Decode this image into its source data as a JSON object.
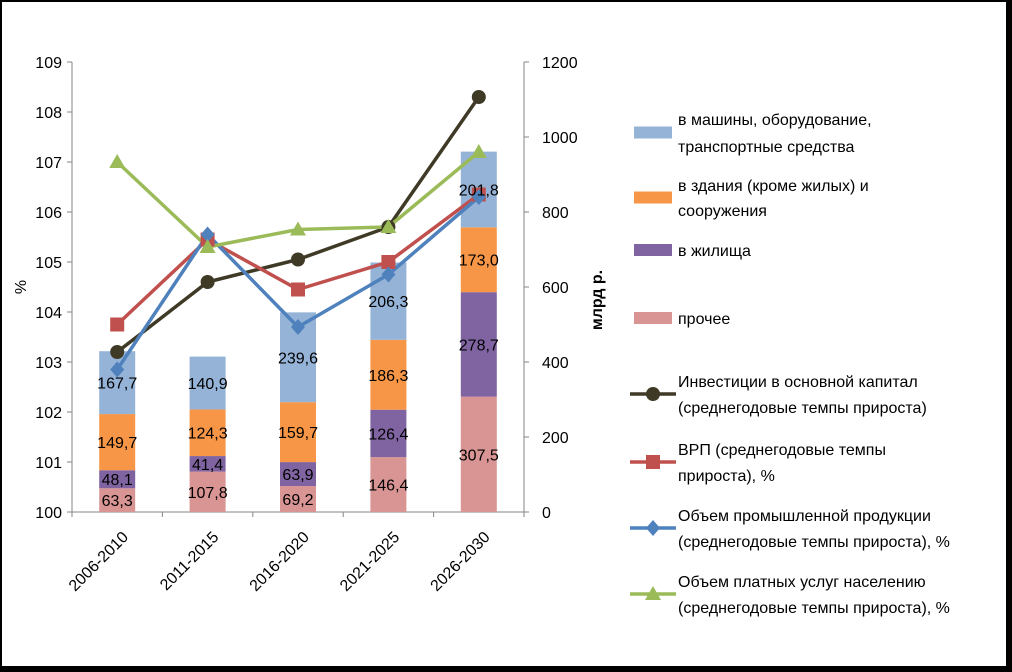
{
  "chart_data": {
    "type": "bar",
    "stacked": true,
    "combo": true,
    "categories": [
      "2006-2010",
      "2011-2015",
      "2016-2020",
      "2021-2025",
      "2026-2030"
    ],
    "y_left": {
      "label": "%",
      "ylim": [
        100,
        109
      ],
      "ticks": [
        "100",
        "101",
        "102",
        "103",
        "104",
        "105",
        "106",
        "107",
        "108",
        "109"
      ]
    },
    "y_right": {
      "label": "млрд р.",
      "ylim": [
        0,
        1200
      ],
      "ticks": [
        "0",
        "200",
        "400",
        "600",
        "800",
        "1000",
        "1200"
      ]
    },
    "grid": false,
    "legend_position": "right",
    "bar_series": [
      {
        "name": "прочее",
        "color": "#d99594",
        "values": [
          63.3,
          107.8,
          69.2,
          146.4,
          307.5
        ],
        "labels": [
          "63,3",
          "107,8",
          "69,2",
          "146,4",
          "307,5"
        ]
      },
      {
        "name": "в жилища",
        "color": "#8064a2",
        "values": [
          48.1,
          41.4,
          63.9,
          126.4,
          278.7
        ],
        "labels": [
          "48,1",
          "41,4",
          "63,9",
          "126,4",
          "278,7"
        ]
      },
      {
        "name": "в здания (кроме жилых) и сооружения",
        "color": "#f79646",
        "values": [
          149.7,
          124.3,
          159.7,
          186.3,
          173.0
        ],
        "labels": [
          "149,7",
          "124,3",
          "159,7",
          "186,3",
          "173,0"
        ]
      },
      {
        "name": "в машины, оборудование, транспортные средства",
        "color": "#95b3d7",
        "values": [
          167.7,
          140.9,
          239.6,
          206.3,
          201.8
        ],
        "labels": [
          "167,7",
          "140,9",
          "239,6",
          "206,3",
          "201,8"
        ]
      }
    ],
    "line_series": [
      {
        "name": "Инвестиции в основной капитал (среднегодовые темпы прироста)",
        "color": "#3f3a26",
        "marker": "circle",
        "values": [
          103.2,
          104.6,
          105.05,
          105.7,
          108.3
        ]
      },
      {
        "name": "ВРП (среднегодовые темпы прироста), %",
        "color": "#c0504d",
        "marker": "square",
        "values": [
          103.75,
          105.45,
          104.45,
          105.0,
          106.35
        ]
      },
      {
        "name": "Объем промышленной продукции (среднегодовые темпы прироста), %",
        "color": "#4f81bd",
        "marker": "diamond",
        "values": [
          102.85,
          105.55,
          103.7,
          104.75,
          106.3
        ]
      },
      {
        "name": "Объем платных услуг населению (среднегодовые темпы прироста), %",
        "color": "#9bbb59",
        "marker": "triangle",
        "values": [
          107.0,
          105.3,
          105.65,
          105.7,
          107.2
        ]
      }
    ],
    "legend": [
      {
        "line1": "в машины, оборудование,",
        "line2": "транспортные средства",
        "kind": "bar",
        "color": "#95b3d7"
      },
      {
        "line1": "в здания (кроме жилых) и",
        "line2": "сооружения",
        "kind": "bar",
        "color": "#f79646"
      },
      {
        "line1": "в жилища",
        "line2": "",
        "kind": "bar",
        "color": "#8064a2"
      },
      {
        "line1": "прочее",
        "line2": "",
        "kind": "bar",
        "color": "#d99594"
      },
      {
        "line1": "Инвестиции в основной капитал",
        "line2": "(среднегодовые темпы прироста)",
        "kind": "line",
        "marker": "circle",
        "color": "#3f3a26"
      },
      {
        "line1": "ВРП (среднегодовые темпы",
        "line2": "прироста), %",
        "kind": "line",
        "marker": "square",
        "color": "#c0504d"
      },
      {
        "line1": "Объем промышленной продукции",
        "line2": "(среднегодовые темпы прироста), %",
        "kind": "line",
        "marker": "diamond",
        "color": "#4f81bd"
      },
      {
        "line1": "Объем платных услуг населению",
        "line2": "(среднегодовые темпы прироста), %",
        "kind": "line",
        "marker": "triangle",
        "color": "#9bbb59"
      }
    ]
  }
}
